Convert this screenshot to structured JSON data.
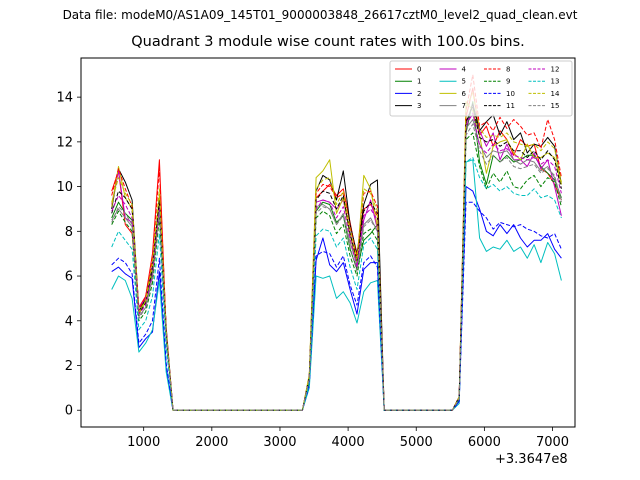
{
  "figure": {
    "suptitle": "Data file: modeM0/AS1A09_145T01_9000003848_26617cztM0_level2_quad_clean.evt"
  },
  "chart_data": {
    "type": "line",
    "title": "Quadrant 3 module wise count rates with 100.0s bins.",
    "xlabel": "",
    "ylabel": "",
    "x_offset_label": "+3.3647e8",
    "xlim": [
      80,
      7330
    ],
    "ylim": [
      -0.75,
      15.75
    ],
    "xticks": [
      1000,
      2000,
      3000,
      4000,
      5000,
      6000,
      7000
    ],
    "xtick_labels": [
      "1000",
      "2000",
      "3000",
      "4000",
      "5000",
      "6000",
      "7000"
    ],
    "yticks": [
      0,
      2,
      4,
      6,
      8,
      10,
      12,
      14
    ],
    "ytick_labels": [
      "0",
      "2",
      "4",
      "6",
      "8",
      "10",
      "12",
      "14"
    ],
    "legend_position": "upper-right",
    "legend_columns": 4,
    "grid": false,
    "x": [
      530,
      630,
      730,
      830,
      930,
      1030,
      1130,
      1230,
      1330,
      1430,
      1530,
      1630,
      1730,
      1830,
      1930,
      2030,
      2130,
      2230,
      2330,
      2430,
      2530,
      2630,
      2730,
      2830,
      2930,
      3030,
      3130,
      3230,
      3330,
      3430,
      3530,
      3630,
      3730,
      3830,
      3930,
      4030,
      4130,
      4230,
      4330,
      4430,
      4530,
      4630,
      4730,
      4830,
      4930,
      5030,
      5130,
      5230,
      5330,
      5430,
      5530,
      5630,
      5730,
      5830,
      5930,
      6030,
      6130,
      6230,
      6330,
      6430,
      6530,
      6630,
      6730,
      6830,
      6930,
      7030,
      7130
    ],
    "series": [
      {
        "name": "0",
        "color": "#ff0000",
        "dash": "solid",
        "values": [
          9.8,
          10.7,
          8.3,
          7.9,
          4.6,
          5.1,
          7.0,
          11.2,
          3.5,
          0,
          0,
          0,
          0,
          0,
          0,
          0,
          0,
          0,
          0,
          0,
          0,
          0,
          0,
          0,
          0,
          0,
          0,
          0,
          0,
          1.5,
          9.5,
          9.8,
          10.1,
          9.6,
          9.9,
          8.4,
          6.8,
          9.0,
          9.2,
          8.7,
          0,
          0,
          0,
          0,
          0,
          0,
          0,
          0,
          0,
          0,
          0,
          0.6,
          13.1,
          14.4,
          12.3,
          12.7,
          11.8,
          12.5,
          12.1,
          11.4,
          12.1,
          11.8,
          11.9,
          10.8,
          10.6,
          10.1,
          9.4
        ]
      },
      {
        "name": "1",
        "color": "#008000",
        "dash": "solid",
        "values": [
          8.6,
          9.3,
          8.8,
          8.5,
          4.4,
          4.9,
          6.2,
          9.2,
          3.4,
          0,
          0,
          0,
          0,
          0,
          0,
          0,
          0,
          0,
          0,
          0,
          0,
          0,
          0,
          0,
          0,
          0,
          0,
          0,
          0,
          1.4,
          8.9,
          9.3,
          9.2,
          8.4,
          8.7,
          7.2,
          6.3,
          7.6,
          7.9,
          8.3,
          0,
          0,
          0,
          0,
          0,
          0,
          0,
          0,
          0,
          0,
          0,
          0.5,
          12.4,
          13.8,
          11.1,
          10.1,
          11.4,
          11.1,
          11.4,
          11.1,
          11.2,
          11.4,
          11.4,
          10.9,
          10.6,
          10.3,
          9.5
        ]
      },
      {
        "name": "2",
        "color": "#0000ff",
        "dash": "solid",
        "values": [
          6.2,
          6.4,
          6.1,
          5.9,
          2.8,
          3.2,
          3.5,
          6.2,
          1.9,
          0,
          0,
          0,
          0,
          0,
          0,
          0,
          0,
          0,
          0,
          0,
          0,
          0,
          0,
          0,
          0,
          0,
          0,
          0,
          0,
          1.2,
          6.7,
          7.7,
          6.5,
          6.2,
          6.6,
          5.4,
          4.3,
          6.3,
          6.6,
          6.6,
          0,
          0,
          0,
          0,
          0,
          0,
          0,
          0,
          0,
          0,
          0,
          0.4,
          10.0,
          9.8,
          9.0,
          8.0,
          7.8,
          8.3,
          7.9,
          8.3,
          7.7,
          7.3,
          7.6,
          7.6,
          7.9,
          7.2,
          6.8
        ]
      },
      {
        "name": "3",
        "color": "#000000",
        "dash": "solid",
        "values": [
          9.0,
          10.8,
          10.2,
          9.4,
          4.4,
          5.0,
          6.5,
          9.5,
          3.7,
          0,
          0,
          0,
          0,
          0,
          0,
          0,
          0,
          0,
          0,
          0,
          0,
          0,
          0,
          0,
          0,
          0,
          0,
          0,
          0,
          1.5,
          9.8,
          10.5,
          10.3,
          9.4,
          10.7,
          8.3,
          7.0,
          9.2,
          10.1,
          10.3,
          0,
          0,
          0,
          0,
          0,
          0,
          0,
          0,
          0,
          0,
          0,
          0.6,
          12.8,
          13.7,
          12.5,
          12.9,
          13.2,
          12.3,
          12.9,
          12.1,
          12.4,
          11.5,
          11.9,
          11.8,
          12.2,
          11.8,
          10.1
        ]
      },
      {
        "name": "4",
        "color": "#bf00bf",
        "dash": "solid",
        "values": [
          9.2,
          10.7,
          8.6,
          8.4,
          4.6,
          5.0,
          6.5,
          9.2,
          3.6,
          0,
          0,
          0,
          0,
          0,
          0,
          0,
          0,
          0,
          0,
          0,
          0,
          0,
          0,
          0,
          0,
          0,
          0,
          0,
          0,
          1.4,
          9.3,
          9.4,
          9.3,
          9.0,
          9.4,
          7.9,
          6.4,
          8.5,
          9.4,
          8.1,
          0,
          0,
          0,
          0,
          0,
          0,
          0,
          0,
          0,
          0,
          0,
          0.6,
          12.9,
          13.2,
          12.5,
          11.8,
          12.4,
          11.2,
          11.9,
          11.2,
          11.2,
          10.9,
          11.5,
          10.8,
          11.2,
          10.0,
          8.7
        ]
      },
      {
        "name": "5",
        "color": "#00bfbf",
        "dash": "solid",
        "values": [
          5.4,
          6.0,
          5.8,
          5.0,
          2.6,
          3.0,
          3.6,
          5.8,
          1.7,
          0,
          0,
          0,
          0,
          0,
          0,
          0,
          0,
          0,
          0,
          0,
          0,
          0,
          0,
          0,
          0,
          0,
          0,
          0,
          0,
          1.0,
          6.0,
          5.9,
          6.0,
          5.0,
          5.3,
          4.8,
          3.9,
          5.3,
          5.7,
          5.8,
          0,
          0,
          0,
          0,
          0,
          0,
          0,
          0,
          0,
          0,
          0,
          0.3,
          11.1,
          11.2,
          7.7,
          7.1,
          7.3,
          7.2,
          7.6,
          7.1,
          7.3,
          6.8,
          7.4,
          6.6,
          7.5,
          7.0,
          5.8
        ]
      },
      {
        "name": "6",
        "color": "#bfbf00",
        "dash": "solid",
        "values": [
          9.1,
          10.9,
          9.5,
          9.0,
          4.3,
          4.9,
          6.4,
          9.6,
          3.5,
          0,
          0,
          0,
          0,
          0,
          0,
          0,
          0,
          0,
          0,
          0,
          0,
          0,
          0,
          0,
          0,
          0,
          0,
          0,
          0,
          1.6,
          10.4,
          10.7,
          11.2,
          8.8,
          9.5,
          7.8,
          6.6,
          10.5,
          9.9,
          8.2,
          0,
          0,
          0,
          0,
          0,
          0,
          0,
          0,
          0,
          0,
          0,
          0.6,
          13.8,
          13.4,
          12.3,
          10.6,
          11.8,
          12.0,
          12.1,
          11.5,
          11.2,
          11.9,
          11.3,
          11.3,
          11.5,
          11.3,
          10.1
        ]
      },
      {
        "name": "7",
        "color": "#808080",
        "dash": "solid",
        "values": [
          8.5,
          9.0,
          8.6,
          8.2,
          4.2,
          4.6,
          6.0,
          9.1,
          3.4,
          0,
          0,
          0,
          0,
          0,
          0,
          0,
          0,
          0,
          0,
          0,
          0,
          0,
          0,
          0,
          0,
          0,
          0,
          0,
          0,
          1.4,
          9.1,
          9.2,
          9.0,
          8.3,
          8.8,
          7.5,
          6.5,
          8.3,
          8.6,
          8.0,
          0,
          0,
          0,
          0,
          0,
          0,
          0,
          0,
          0,
          0,
          0,
          0.5,
          12.6,
          13.0,
          11.9,
          11.3,
          11.6,
          11.5,
          11.6,
          11.2,
          11.0,
          11.2,
          11.1,
          10.7,
          10.9,
          10.4,
          9.4
        ]
      },
      {
        "name": "8",
        "color": "#ff0000",
        "dash": "dashed",
        "values": [
          9.6,
          10.8,
          9.9,
          9.1,
          4.5,
          5.1,
          6.8,
          10.8,
          3.6,
          0,
          0,
          0,
          0,
          0,
          0,
          0,
          0,
          0,
          0,
          0,
          0,
          0,
          0,
          0,
          0,
          0,
          0,
          0,
          0,
          1.5,
          9.7,
          10.1,
          10.0,
          9.5,
          9.7,
          8.2,
          6.9,
          9.7,
          9.8,
          9.1,
          0,
          0,
          0,
          0,
          0,
          0,
          0,
          0,
          0,
          0,
          0,
          0.6,
          13.4,
          15.0,
          12.7,
          12.9,
          12.5,
          13.1,
          12.6,
          13.0,
          12.7,
          12.3,
          12.4,
          11.7,
          13.0,
          12.1,
          10.4
        ]
      },
      {
        "name": "9",
        "color": "#008000",
        "dash": "dashed",
        "values": [
          8.3,
          8.9,
          8.4,
          8.0,
          4.0,
          4.4,
          5.7,
          8.6,
          3.2,
          0,
          0,
          0,
          0,
          0,
          0,
          0,
          0,
          0,
          0,
          0,
          0,
          0,
          0,
          0,
          0,
          0,
          0,
          0,
          0,
          1.3,
          8.6,
          8.9,
          8.7,
          7.9,
          8.3,
          6.9,
          6.0,
          7.9,
          8.1,
          7.6,
          0,
          0,
          0,
          0,
          0,
          0,
          0,
          0,
          0,
          0,
          0,
          0.5,
          12.1,
          12.4,
          10.9,
          9.9,
          10.6,
          10.2,
          10.7,
          10.0,
          9.9,
          10.3,
          10.5,
          10.0,
          10.4,
          10.2,
          9.1
        ]
      },
      {
        "name": "10",
        "color": "#0000ff",
        "dash": "dashed",
        "values": [
          6.5,
          6.8,
          6.6,
          6.1,
          3.0,
          3.4,
          4.0,
          6.8,
          2.1,
          0,
          0,
          0,
          0,
          0,
          0,
          0,
          0,
          0,
          0,
          0,
          0,
          0,
          0,
          0,
          0,
          0,
          0,
          0,
          0,
          1.1,
          6.9,
          7.1,
          7.0,
          6.4,
          6.9,
          5.6,
          4.7,
          6.6,
          6.9,
          6.4,
          0,
          0,
          0,
          0,
          0,
          0,
          0,
          0,
          0,
          0,
          0,
          0.4,
          9.3,
          9.3,
          8.9,
          8.6,
          8.1,
          8.4,
          8.3,
          8.2,
          8.3,
          8.1,
          8.0,
          7.8,
          7.7,
          7.9,
          7.2
        ]
      },
      {
        "name": "11",
        "color": "#000000",
        "dash": "dashed",
        "values": [
          8.8,
          9.8,
          9.5,
          9.0,
          4.3,
          4.8,
          6.4,
          9.4,
          3.5,
          0,
          0,
          0,
          0,
          0,
          0,
          0,
          0,
          0,
          0,
          0,
          0,
          0,
          0,
          0,
          0,
          0,
          0,
          0,
          0,
          1.5,
          9.4,
          9.8,
          9.7,
          9.0,
          9.6,
          7.9,
          6.7,
          8.9,
          9.3,
          8.8,
          0,
          0,
          0,
          0,
          0,
          0,
          0,
          0,
          0,
          0,
          0,
          0.6,
          12.9,
          13.6,
          12.2,
          12.0,
          12.1,
          11.8,
          12.0,
          11.6,
          11.6,
          11.3,
          11.6,
          11.2,
          11.6,
          11.2,
          9.9
        ]
      },
      {
        "name": "12",
        "color": "#bf00bf",
        "dash": "dashed",
        "values": [
          8.9,
          9.6,
          9.2,
          8.6,
          4.3,
          4.7,
          6.1,
          9.0,
          3.4,
          0,
          0,
          0,
          0,
          0,
          0,
          0,
          0,
          0,
          0,
          0,
          0,
          0,
          0,
          0,
          0,
          0,
          0,
          0,
          0,
          1.4,
          9.0,
          9.4,
          9.3,
          8.6,
          9.1,
          7.7,
          6.4,
          8.7,
          9.0,
          8.5,
          0,
          0,
          0,
          0,
          0,
          0,
          0,
          0,
          0,
          0,
          0,
          0.6,
          12.7,
          13.3,
          11.8,
          11.5,
          11.9,
          11.6,
          11.7,
          11.4,
          11.3,
          11.2,
          11.3,
          11.0,
          11.2,
          10.9,
          9.7
        ]
      },
      {
        "name": "13",
        "color": "#00bfbf",
        "dash": "dashed",
        "values": [
          7.3,
          8.0,
          7.6,
          7.2,
          3.6,
          4.0,
          5.1,
          7.9,
          2.8,
          0,
          0,
          0,
          0,
          0,
          0,
          0,
          0,
          0,
          0,
          0,
          0,
          0,
          0,
          0,
          0,
          0,
          0,
          0,
          0,
          1.2,
          7.8,
          8.1,
          8.0,
          7.3,
          7.7,
          6.4,
          5.4,
          7.4,
          7.7,
          7.2,
          0,
          0,
          0,
          0,
          0,
          0,
          0,
          0,
          0,
          0,
          0,
          0.5,
          11.1,
          11.3,
          10.4,
          9.9,
          10.1,
          9.8,
          10.0,
          9.7,
          9.6,
          9.6,
          9.9,
          9.5,
          9.6,
          9.4,
          8.6
        ]
      },
      {
        "name": "14",
        "color": "#bfbf00",
        "dash": "dashed",
        "values": [
          9.3,
          10.4,
          9.7,
          9.2,
          4.4,
          4.9,
          6.6,
          9.9,
          3.6,
          0,
          0,
          0,
          0,
          0,
          0,
          0,
          0,
          0,
          0,
          0,
          0,
          0,
          0,
          0,
          0,
          0,
          0,
          0,
          0,
          1.5,
          9.9,
          10.3,
          10.4,
          9.2,
          9.8,
          8.1,
          6.8,
          9.9,
          9.7,
          8.9,
          0,
          0,
          0,
          0,
          0,
          0,
          0,
          0,
          0,
          0,
          0,
          0.6,
          13.5,
          14.2,
          12.6,
          12.2,
          12.3,
          12.2,
          12.4,
          12.0,
          11.9,
          11.8,
          11.9,
          11.6,
          12.0,
          11.7,
          10.2
        ]
      },
      {
        "name": "15",
        "color": "#808080",
        "dash": "dashed",
        "values": [
          8.4,
          9.1,
          8.8,
          8.3,
          4.1,
          4.6,
          5.9,
          8.9,
          3.3,
          0,
          0,
          0,
          0,
          0,
          0,
          0,
          0,
          0,
          0,
          0,
          0,
          0,
          0,
          0,
          0,
          0,
          0,
          0,
          0,
          1.4,
          8.8,
          9.1,
          9.0,
          8.3,
          8.7,
          7.3,
          6.2,
          8.2,
          8.5,
          8.0,
          0,
          0,
          0,
          0,
          0,
          0,
          0,
          0,
          0,
          0,
          0,
          0.5,
          12.3,
          12.8,
          11.6,
          11.0,
          11.4,
          11.1,
          11.3,
          10.9,
          10.8,
          10.9,
          11.0,
          10.6,
          10.8,
          10.5,
          9.3
        ]
      }
    ]
  }
}
